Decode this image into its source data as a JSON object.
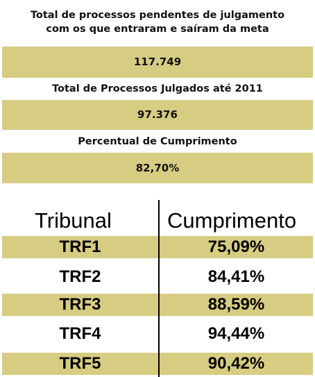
{
  "summary": {
    "pending_title_line1": "Total de processos pendentes de julgamento",
    "pending_title_line2": "com os que entraram e saíram da meta",
    "pending_value": "117.749",
    "judged_title": "Total de Processos Julgados até 2011",
    "judged_value": "97.376",
    "percent_title": "Percentual de Cumprimento",
    "percent_value": "82,70%"
  },
  "table": {
    "header_tribunal": "Tribunal",
    "header_cumprimento": "Cumprimento",
    "rows": [
      {
        "tribunal": "TRF1",
        "cumprimento": "75,09%"
      },
      {
        "tribunal": "TRF2",
        "cumprimento": "84,41%"
      },
      {
        "tribunal": "TRF3",
        "cumprimento": "88,59%"
      },
      {
        "tribunal": "TRF4",
        "cumprimento": "94,44%"
      },
      {
        "tribunal": "TRF5",
        "cumprimento": "90,42%"
      }
    ]
  },
  "colors": {
    "band": "#d6cd82",
    "text": "#111111"
  }
}
